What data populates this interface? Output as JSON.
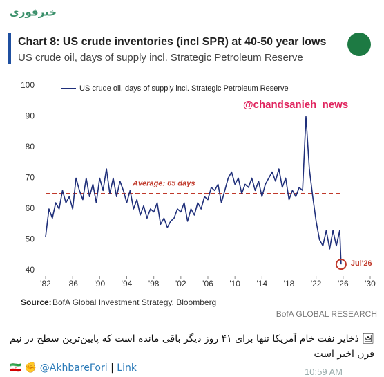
{
  "channel_name": "خبرفوری",
  "chart_data": {
    "type": "line",
    "title": "Chart 8: US crude inventories (incl SPR) at 40-50 year lows",
    "subtitle": "US crude oil, days of supply incl. Strategic Petroleum Reserve",
    "x": [
      1982,
      1982.5,
      1983,
      1983.5,
      1984,
      1984.5,
      1985,
      1985.5,
      1986,
      1986.5,
      1987,
      1987.5,
      1988,
      1988.5,
      1989,
      1989.5,
      1990,
      1990.5,
      1991,
      1991.5,
      1992,
      1992.5,
      1993,
      1993.5,
      1994,
      1994.5,
      1995,
      1995.5,
      1996,
      1996.5,
      1997,
      1997.5,
      1998,
      1998.5,
      1999,
      1999.5,
      2000,
      2000.5,
      2001,
      2001.5,
      2002,
      2002.5,
      2003,
      2003.5,
      2004,
      2004.5,
      2005,
      2005.5,
      2006,
      2006.5,
      2007,
      2007.5,
      2008,
      2008.5,
      2009,
      2009.5,
      2010,
      2010.5,
      2011,
      2011.5,
      2012,
      2012.5,
      2013,
      2013.5,
      2014,
      2014.5,
      2015,
      2015.5,
      2016,
      2016.5,
      2017,
      2017.5,
      2018,
      2018.5,
      2019,
      2019.5,
      2020,
      2020.5,
      2021,
      2021.5,
      2022,
      2022.5,
      2023,
      2023.5,
      2024,
      2024.5,
      2025,
      2025.5,
      2025.7
    ],
    "series": [
      {
        "name": "US crude oil, days of supply incl. Strategic Petroleum Reserve",
        "color": "#1f2f7a",
        "values": [
          51,
          60,
          57,
          62,
          60,
          66,
          62,
          64,
          60,
          70,
          66,
          63,
          70,
          64,
          68,
          62,
          70,
          66,
          73,
          65,
          70,
          64,
          69,
          66,
          62,
          66,
          60,
          63,
          58,
          61,
          57,
          60,
          59,
          62,
          55,
          57,
          54,
          56,
          57,
          60,
          59,
          62,
          56,
          60,
          58,
          62,
          60,
          64,
          63,
          67,
          66,
          68,
          62,
          66,
          70,
          72,
          68,
          70,
          65,
          68,
          67,
          70,
          66,
          69,
          64,
          68,
          70,
          72,
          69,
          73,
          67,
          70,
          63,
          66,
          64,
          67,
          66,
          90,
          73,
          64,
          56,
          50,
          48,
          53,
          47,
          53,
          48,
          53,
          42
        ]
      }
    ],
    "xlim": [
      1982,
      2030
    ],
    "ylim": [
      40,
      100
    ],
    "xticks": [
      {
        "value": 1982,
        "label": "'82"
      },
      {
        "value": 1986,
        "label": "'86"
      },
      {
        "value": 1990,
        "label": "'90"
      },
      {
        "value": 1994,
        "label": "'94"
      },
      {
        "value": 1998,
        "label": "'98"
      },
      {
        "value": 2002,
        "label": "'02"
      },
      {
        "value": 2006,
        "label": "'06"
      },
      {
        "value": 2010,
        "label": "'10"
      },
      {
        "value": 2014,
        "label": "'14"
      },
      {
        "value": 2018,
        "label": "'18"
      },
      {
        "value": 2022,
        "label": "'22"
      },
      {
        "value": 2026,
        "label": "'26"
      },
      {
        "value": 2030,
        "label": "'30"
      }
    ],
    "yticks": [
      40,
      50,
      60,
      70,
      80,
      90,
      100
    ],
    "grid": false,
    "average": {
      "value": 65,
      "label": "Average: 65 days",
      "color": "#c0392b"
    },
    "annotation": "Jul'26",
    "watermark": "@chandsanieh_news",
    "source_label": "Source:",
    "source": "BofA Global Investment Strategy, Bloomberg",
    "brand": "BofA GLOBAL RESEARCH"
  },
  "post": {
    "caption": "🖼 ذخایر نفت خام آمریکا تنها برای ۴۱ روز دیگر باقی مانده است که پایین‌ترین سطح در نیم قرن اخیر است",
    "flag": "🇮🇷",
    "fist": "✊",
    "handle": "@AkhbareFori",
    "separator": "|",
    "link": "Link",
    "time": "10:59 AM"
  }
}
